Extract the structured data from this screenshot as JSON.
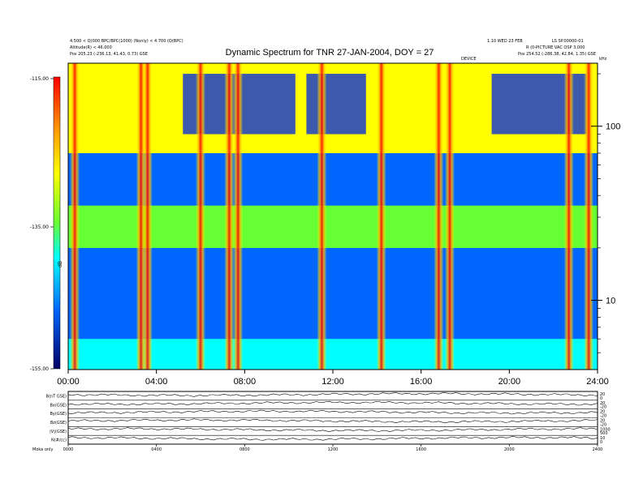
{
  "header": {
    "left_line1": "4.500 < Q(000 BPC/BPC(1000) (Nonly) < 4.700 (Q(BPC)",
    "left_line2": "Altitude(R) < 46.000",
    "left_line3": "Pos   205.23 (-236.13, 41.43, 0.73) GSE",
    "right_line1": "1.10 WED 23 FEB",
    "right_line2": "LS SP.00000-01",
    "right_line3": "R (0-PICTURE VAC OSP 3,000",
    "right_line4": "Pos   254.52 (-286.38, 42.84, 1.35) GSE",
    "mid_small": "DEVICE",
    "ytop_unit": "kHz"
  },
  "footer": {
    "left": "Moka   only"
  },
  "chart_data": [
    {
      "type": "heatmap",
      "title": "Dynamic Spectrum for TNR 27-JAN-2004, DOY = 27",
      "x_range": [
        "00:00",
        "24:00"
      ],
      "x_ticks": [
        "00:00",
        "04:00",
        "08:00",
        "12:00",
        "16:00",
        "20:00",
        "24:00"
      ],
      "y_scale": "log",
      "y_range": [
        4,
        230
      ],
      "y_unit": "kHz",
      "y_tick_labels": [
        "100",
        "10"
      ],
      "y_tick_values": [
        100,
        10
      ],
      "colorbar": {
        "label": "dB",
        "tick_labels": [
          "-115.00",
          "-135.00",
          "-155.00"
        ],
        "range": [
          -155,
          -115
        ]
      },
      "bands": [
        {
          "region": "4-6 kHz",
          "intensity_db": -139
        },
        {
          "region": "6-20 kHz",
          "intensity_db": -142
        },
        {
          "region": "20-35 kHz",
          "intensity_db": -135
        },
        {
          "region": "35-70 kHz",
          "intensity_db": -146
        },
        {
          "region": "70-230 kHz",
          "intensity_db": -128
        }
      ],
      "bursts_hours": [
        0.3,
        3.3,
        3.6,
        6.0,
        7.3,
        7.7,
        11.5,
        14.2,
        16.8,
        17.3,
        22.7,
        23.6
      ]
    },
    {
      "type": "line",
      "title": "",
      "panel_labels": [
        "B(nT GSE)",
        "Bx(GSE)",
        "By(GSE)",
        "Bz(GSE)",
        "|V|(GSE)",
        "N(#/cc)"
      ],
      "x_tick_labels": [
        "0000",
        "0400",
        "0800",
        "1200",
        "1600",
        "2000",
        "2400"
      ],
      "right_ticks": [
        [
          "20",
          "0"
        ],
        [
          "20",
          "-20"
        ],
        [
          "20",
          "-20"
        ],
        [
          "20",
          "-20"
        ],
        [
          "1000",
          "500"
        ],
        [
          "10",
          "0"
        ]
      ]
    }
  ]
}
